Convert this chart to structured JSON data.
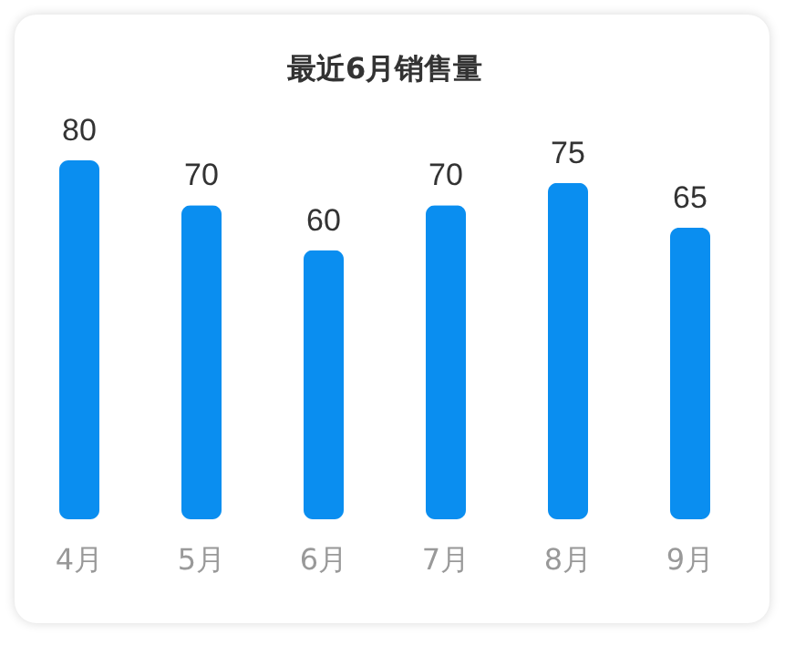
{
  "chart_data": {
    "type": "bar",
    "title": "最近6月销售量",
    "categories": [
      "4月",
      "5月",
      "6月",
      "7月",
      "8月",
      "9月"
    ],
    "values": [
      80,
      70,
      60,
      70,
      75,
      65
    ],
    "color": "#0a8ef0",
    "data_labels": true
  }
}
